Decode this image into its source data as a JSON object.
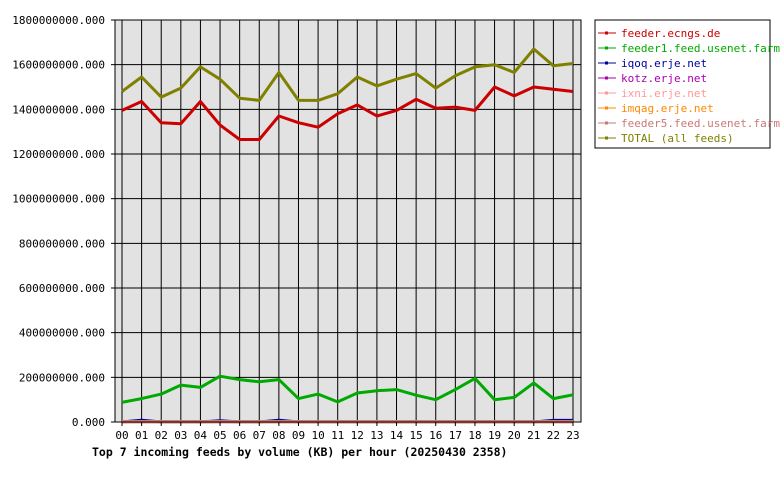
{
  "chart_data": {
    "type": "line",
    "title": "Top 7 incoming feeds by volume (KB) per hour (20250430 2358)",
    "xlabel": "",
    "ylabel": "",
    "ylim": [
      0,
      1800000000
    ],
    "y_ticks": [
      "0.000",
      "200000000.000",
      "400000000.000",
      "600000000.000",
      "800000000.000",
      "1000000000.000",
      "1200000000.000",
      "1400000000.000",
      "1600000000.000",
      "1800000000.000"
    ],
    "y_tick_values": [
      0,
      200000000,
      400000000,
      600000000,
      800000000,
      1000000000,
      1200000000,
      1400000000,
      1600000000,
      1800000000
    ],
    "categories": [
      "00",
      "01",
      "02",
      "03",
      "04",
      "05",
      "06",
      "07",
      "08",
      "09",
      "10",
      "11",
      "12",
      "13",
      "14",
      "15",
      "16",
      "17",
      "18",
      "19",
      "20",
      "21",
      "22",
      "23"
    ],
    "grid": true,
    "legend_position": "right",
    "series": [
      {
        "name": "feeder.ecngs.de",
        "color": "#cc0000",
        "values": [
          1395000000,
          1435000000,
          1340000000,
          1335000000,
          1435000000,
          1330000000,
          1265000000,
          1265000000,
          1370000000,
          1340000000,
          1320000000,
          1380000000,
          1420000000,
          1370000000,
          1395000000,
          1445000000,
          1405000000,
          1410000000,
          1395000000,
          1500000000,
          1460000000,
          1500000000,
          1490000000,
          1480000000
        ]
      },
      {
        "name": "feeder1.feed.usenet.farm",
        "color": "#00aa00",
        "values": [
          88000000,
          105000000,
          125000000,
          165000000,
          155000000,
          205000000,
          190000000,
          180000000,
          190000000,
          105000000,
          125000000,
          90000000,
          130000000,
          140000000,
          145000000,
          120000000,
          100000000,
          145000000,
          195000000,
          100000000,
          110000000,
          175000000,
          105000000,
          122000000
        ]
      },
      {
        "name": "iqoq.erje.net",
        "color": "#000099",
        "values": [
          0,
          8000000,
          0,
          0,
          0,
          6000000,
          0,
          0,
          8000000,
          0,
          0,
          0,
          0,
          0,
          0,
          0,
          0,
          0,
          0,
          0,
          0,
          0,
          7000000,
          7000000
        ]
      },
      {
        "name": "kotz.erje.net",
        "color": "#aa00aa",
        "values": [
          2000000,
          2000000,
          2000000,
          2000000,
          2000000,
          2000000,
          2000000,
          2000000,
          2000000,
          2000000,
          2000000,
          2000000,
          2000000,
          2000000,
          2000000,
          2000000,
          2000000,
          2000000,
          2000000,
          2000000,
          2000000,
          2000000,
          2000000,
          2000000
        ]
      },
      {
        "name": "ixni.erje.net",
        "color": "#ff9999",
        "values": [
          1000000,
          1000000,
          1000000,
          1000000,
          1000000,
          1000000,
          1000000,
          1000000,
          1000000,
          1000000,
          1000000,
          1000000,
          1000000,
          1000000,
          1000000,
          1000000,
          1000000,
          1000000,
          1000000,
          1000000,
          1000000,
          1000000,
          1000000,
          1000000
        ]
      },
      {
        "name": "imqag.erje.net",
        "color": "#ff8800",
        "values": [
          1000000,
          1000000,
          1000000,
          1000000,
          1000000,
          1000000,
          1000000,
          1000000,
          1000000,
          1000000,
          1000000,
          1000000,
          1000000,
          1000000,
          1000000,
          1000000,
          1000000,
          1000000,
          1000000,
          1000000,
          1000000,
          1000000,
          1000000,
          1000000
        ]
      },
      {
        "name": "feeder5.feed.usenet.farm",
        "color": "#cc7777",
        "values": [
          1000000,
          1000000,
          1000000,
          1000000,
          1000000,
          1000000,
          1000000,
          1000000,
          1000000,
          1000000,
          1000000,
          1000000,
          1000000,
          1000000,
          1000000,
          1000000,
          1000000,
          1000000,
          1000000,
          1000000,
          1000000,
          1000000,
          1000000,
          1000000
        ]
      },
      {
        "name": "TOTAL (all feeds)",
        "color": "#808000",
        "values": [
          1480000000,
          1545000000,
          1455000000,
          1495000000,
          1590000000,
          1535000000,
          1450000000,
          1440000000,
          1565000000,
          1440000000,
          1440000000,
          1470000000,
          1545000000,
          1505000000,
          1535000000,
          1560000000,
          1495000000,
          1550000000,
          1590000000,
          1600000000,
          1565000000,
          1670000000,
          1595000000,
          1605000000
        ]
      }
    ]
  }
}
